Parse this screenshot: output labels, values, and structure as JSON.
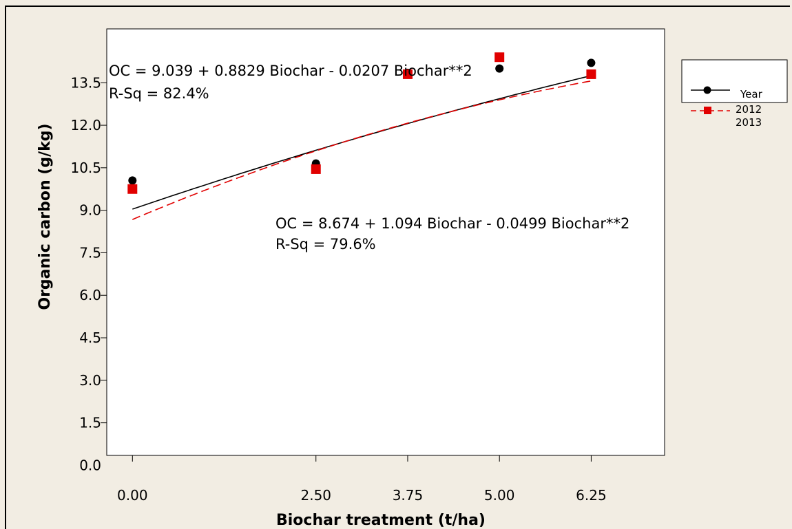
{
  "chart_data": {
    "type": "scatter",
    "xlabel": "Biochar treatment (t/ha)",
    "ylabel": "Organic carbon (g/kg)",
    "x_ticks": [
      "0.00",
      "2.50",
      "3.75",
      "5.00",
      "6.25"
    ],
    "x_tick_values": [
      0,
      2.5,
      3.75,
      5.0,
      6.25
    ],
    "y_ticks": [
      "0.0",
      "1.5",
      "3.0",
      "4.5",
      "6.0",
      "7.5",
      "9.0",
      "10.5",
      "12.0",
      "13.5"
    ],
    "y_tick_values": [
      0,
      1.5,
      3.0,
      4.5,
      6.0,
      7.5,
      9.0,
      10.5,
      12.0,
      13.5
    ],
    "xlim": [
      -0.35,
      7.25
    ],
    "ylim": [
      0.35,
      15.4
    ],
    "legend": {
      "title": "Year",
      "entries": [
        "2012",
        "2013"
      ],
      "placement": "right"
    },
    "series": [
      {
        "name": "2012",
        "color": "#000000",
        "marker": "circle",
        "line_style": "solid",
        "points": [
          {
            "x": 0,
            "y": 10.05
          },
          {
            "x": 2.5,
            "y": 10.65
          },
          {
            "x": 3.75,
            "y": 13.85
          },
          {
            "x": 5.0,
            "y": 14.0
          },
          {
            "x": 6.25,
            "y": 14.2
          }
        ],
        "fit": {
          "a": 9.039,
          "b": 0.8829,
          "c": -0.0207
        },
        "equation": "OC = 9.039 + 0.8829 Biochar - 0.0207 Biochar**2",
        "rsq": "R-Sq = 82.4%"
      },
      {
        "name": "2013",
        "color": "#e10000",
        "marker": "square",
        "line_style": "dashed",
        "points": [
          {
            "x": 0,
            "y": 9.75
          },
          {
            "x": 2.5,
            "y": 10.45
          },
          {
            "x": 3.75,
            "y": 13.8
          },
          {
            "x": 5.0,
            "y": 14.4
          },
          {
            "x": 6.25,
            "y": 13.8
          }
        ],
        "fit": {
          "a": 8.674,
          "b": 1.094,
          "c": -0.0499
        },
        "equation": "OC = 8.674 + 1.094 Biochar - 0.0499 Biochar**2",
        "rsq": "R-Sq = 79.6%"
      }
    ]
  }
}
